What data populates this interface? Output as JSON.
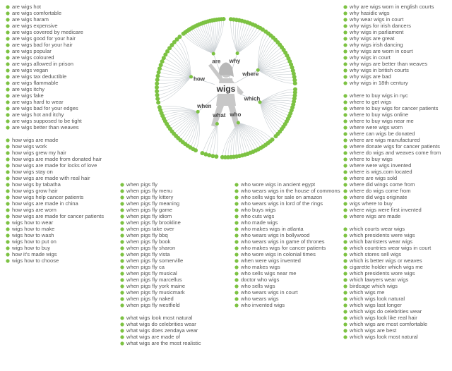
{
  "root": "wigs",
  "colors": {
    "dot": "#7cc242",
    "line": "#c9cfd3",
    "text": "#555555",
    "figure": "#c8c8c8"
  },
  "central_icon": "person-with-wig-silhouette",
  "branches": [
    {
      "label": "are",
      "questions": [
        "are wigs hot",
        "are wigs comfortable",
        "are wigs haram",
        "are wigs expensive",
        "are wigs covered by medicare",
        "are wigs good for your hair",
        "are wigs bad for your hair",
        "are wigs popular",
        "are wigs coloured",
        "are wigs allowed in prison",
        "are wigs vegan",
        "are wigs tax deductible",
        "are wigs flammable",
        "are wigs itchy",
        "are wigs fake",
        "are wigs hard to wear",
        "are wigs bad for your edges",
        "are wigs hot and itchy",
        "are wigs supposed to be tight",
        "are wigs better than weaves"
      ]
    },
    {
      "label": "why",
      "questions": [
        "why are wigs worn in english courts",
        "why hasidic wigs",
        "why wear wigs in court",
        "why wigs for irish dancers",
        "why wigs in parliament",
        "why wigs are great",
        "why wigs irish dancing",
        "why wigs are worn in court",
        "why wigs in court",
        "why wigs are better than weaves",
        "why wigs in british courts",
        "why wigs are bad",
        "why wigs in 18th century"
      ]
    },
    {
      "label": "where",
      "questions": [
        "where to buy wigs in nyc",
        "where to get wigs",
        "where to buy wigs for cancer patients",
        "where to buy wigs online",
        "where to buy wigs near me",
        "where were wigs worn",
        "where can wigs be donated",
        "where are wigs manufactured",
        "where donate wigs for cancer patients",
        "where do wigs and weaves come from",
        "where to buy wigs",
        "where were wigs invented",
        "where is wigs.com located",
        "where are wigs sold",
        "where did wings come from",
        "where do wigs come from",
        "where did wigs originate",
        "wigs where to buy",
        "where wigs were first invented",
        "where wigs are made"
      ]
    },
    {
      "label": "which",
      "questions": [
        "which courts wear wigs",
        "which presidents were wigs",
        "which barristers wear wigs",
        "which countries wear wigs in court",
        "which stores sell wigs",
        "which is better wigs or weaves",
        "cigarette holder which wigs me",
        "which presidents wore wigs",
        "which lawyers wear wigs",
        "birdcage which wigs",
        "which wigs me",
        "which wigs look natural",
        "which wigs last longer",
        "which wigs do celebrities wear",
        "which wigs look like real hair",
        "which wigs are most comfortable",
        "which wigs are best",
        "which wigs look most natural"
      ]
    },
    {
      "label": "who",
      "questions": [
        "who wore wigs in ancient egypt",
        "who wears wigs in the house of commons",
        "who sells wigs for sale on amazon",
        "who wears wigs in lord of the rings",
        "who buys wigs",
        "who cuts wigs",
        "who made wigs",
        "who makes wigs in atlanta",
        "who wears wigs in bollywood",
        "who wears wigs in game of thrones",
        "who makes wigs for cancer patients",
        "who wore wigs in colonial times",
        "when were wigs invented",
        "who makes wigs",
        "who sells wigs near me",
        "doctor who wigs",
        "who sells wigs",
        "who wears wigs in court",
        "who wears wigs",
        "who invented wigs"
      ]
    },
    {
      "label": "what",
      "questions": [
        "what wigs look most natural",
        "what wigs do celebrities wear",
        "what wigs does zendaya wear",
        "what wigs are made of",
        "what wigs are the most realistic"
      ]
    },
    {
      "label": "when",
      "questions": [
        "when pigs fly",
        "when pigs fly menu",
        "when pigs fly kittery",
        "when pigs fly meaning",
        "when pigs fly game",
        "when pigs fly idiom",
        "when pigs fly brookline",
        "when pigs take over",
        "when pigs fly bbq",
        "when pigs fly book",
        "when pigs fly sharon",
        "when pigs fly vista",
        "when pigs fly somerville",
        "when pigs fly ca",
        "when pigs fly musical",
        "when pigs fly marcellus",
        "when pigs fly york maine",
        "when pigs fly musicmark",
        "when pigs fly naked",
        "when pigs fly westfield"
      ]
    },
    {
      "label": "how",
      "questions": [
        "how wigs are made",
        "how wigs work",
        "how wigs grew my hair",
        "how wigs are made from donated hair",
        "how wigs are made for locks of love",
        "how wigs stay on",
        "how wigs are made with real hair",
        "how wigs by tabatha",
        "how wigs grow hair",
        "how wigs help cancer patients",
        "how wigs are made in china",
        "how wigs are worn",
        "how wigs are made for cancer patients",
        "wigs how to wear",
        "wigs how to make",
        "wigs how to wash",
        "wigs how to put on",
        "wigs how to buy",
        "how it's made wigs",
        "wigs how to choose"
      ]
    }
  ]
}
